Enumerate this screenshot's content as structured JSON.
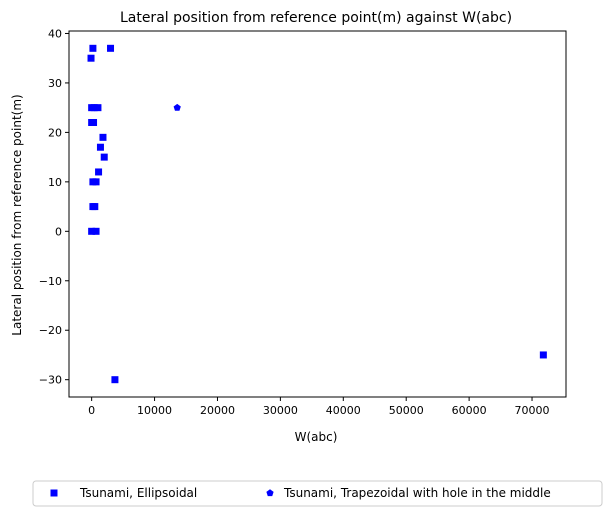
{
  "chart_data": {
    "type": "scatter",
    "title": "Lateral position from reference point(m) against W(abc)",
    "xlabel": "W(abc)",
    "ylabel": "Lateral position from reference point(m)",
    "xlim": [
      -3600,
      75400
    ],
    "ylim": [
      -33.5,
      40.5
    ],
    "xticks": [
      0,
      10000,
      20000,
      30000,
      40000,
      50000,
      60000,
      70000
    ],
    "yticks": [
      -30,
      -20,
      -10,
      0,
      10,
      20,
      30,
      40
    ],
    "grid": false,
    "legend_position": "bottom-center",
    "series": [
      {
        "name": "Tsunami, Ellipsoidal",
        "marker": "square",
        "color": "#0000ff",
        "points": [
          {
            "x": 200,
            "y": 37
          },
          {
            "x": 3000,
            "y": 37
          },
          {
            "x": -100,
            "y": 35
          },
          {
            "x": 0,
            "y": 25
          },
          {
            "x": 400,
            "y": 25
          },
          {
            "x": 1000,
            "y": 25
          },
          {
            "x": 0,
            "y": 22
          },
          {
            "x": 300,
            "y": 22
          },
          {
            "x": 1800,
            "y": 19
          },
          {
            "x": 1400,
            "y": 17
          },
          {
            "x": 2000,
            "y": 15
          },
          {
            "x": 1100,
            "y": 12
          },
          {
            "x": 200,
            "y": 10
          },
          {
            "x": 700,
            "y": 10
          },
          {
            "x": 200,
            "y": 5
          },
          {
            "x": 500,
            "y": 5
          },
          {
            "x": 0,
            "y": 0
          },
          {
            "x": 700,
            "y": 0
          },
          {
            "x": 71800,
            "y": -25
          },
          {
            "x": 3700,
            "y": -30
          }
        ]
      },
      {
        "name": "Tsunami, Trapezoidal with hole in the middle",
        "marker": "pentagon",
        "color": "#0000ff",
        "points": [
          {
            "x": 13600,
            "y": 25
          }
        ]
      }
    ]
  }
}
